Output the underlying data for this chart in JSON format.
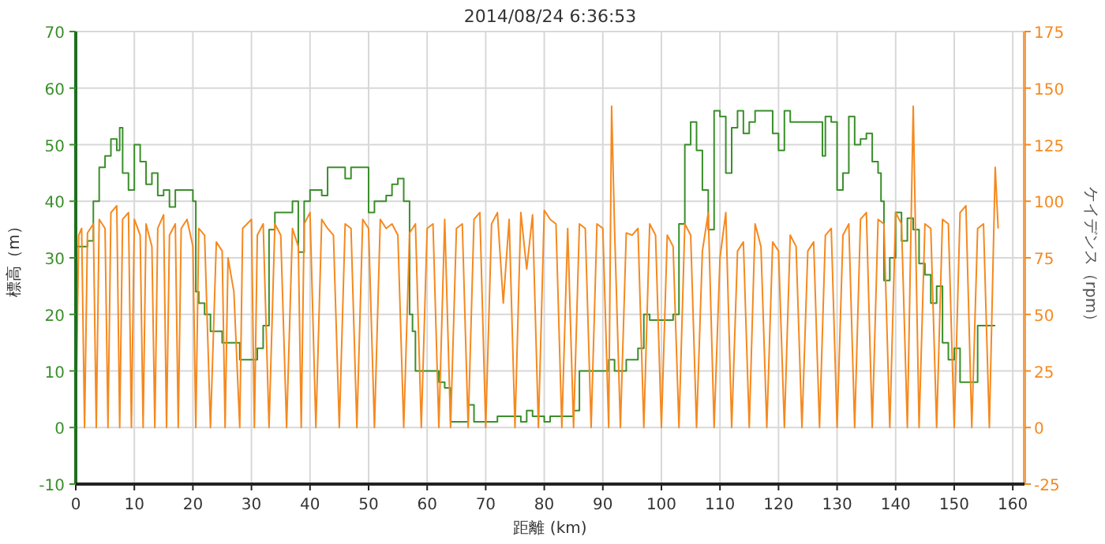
{
  "chart_data": {
    "type": "line",
    "title": "2014/08/24 6:36:53",
    "xlabel": "距離 (km)",
    "ylabel": "標高（m）",
    "y2label": "ケイデンス（rpm）",
    "xlim": [
      0,
      162
    ],
    "xticks": [
      0,
      10,
      20,
      30,
      40,
      50,
      60,
      70,
      80,
      90,
      100,
      110,
      120,
      130,
      140,
      150,
      160
    ],
    "ylim": [
      -10,
      70
    ],
    "yticks": [
      -10,
      0,
      10,
      20,
      30,
      40,
      50,
      60,
      70
    ],
    "y2lim": [
      -25,
      175
    ],
    "y2ticks": [
      -25,
      0,
      25,
      50,
      75,
      100,
      125,
      150,
      175
    ],
    "grid": true,
    "marker": "none",
    "line_style": "solid",
    "series": [
      {
        "type": "step",
        "color": "#3a8f2a",
        "x": [
          0,
          2,
          3,
          4,
          5,
          6,
          7,
          7.5,
          8,
          9,
          10,
          11,
          12,
          13,
          14,
          15,
          16,
          17,
          19,
          20,
          20.5,
          21,
          22,
          23,
          25,
          27,
          28,
          30,
          31,
          32,
          33,
          34,
          36,
          37,
          38,
          39,
          40,
          41,
          42,
          43,
          45,
          46,
          47,
          49,
          50,
          51,
          52,
          53,
          54,
          55,
          56,
          57,
          57.5,
          58,
          60,
          62,
          63,
          64,
          66,
          67,
          68,
          72,
          74,
          76,
          77,
          78,
          80,
          81,
          84,
          85,
          86,
          90,
          91,
          92,
          94,
          96,
          97,
          98,
          100,
          102,
          103,
          104,
          105,
          106,
          107,
          108,
          109,
          110,
          111,
          112,
          113,
          114,
          115,
          116,
          118,
          119,
          120,
          121,
          122,
          125,
          127,
          127.5,
          128,
          129,
          130,
          131,
          132,
          133,
          134,
          135,
          136,
          137,
          137.5,
          138,
          139,
          140,
          141,
          142,
          143,
          144,
          145,
          146,
          147,
          148,
          149,
          150,
          151,
          153,
          154,
          157
        ],
        "values": [
          32,
          33,
          40,
          46,
          48,
          51,
          49,
          53,
          45,
          42,
          50,
          47,
          43,
          45,
          41,
          42,
          39,
          42,
          42,
          40,
          24,
          22,
          20,
          17,
          15,
          15,
          12,
          12,
          14,
          18,
          35,
          38,
          38,
          40,
          31,
          40,
          42,
          42,
          41,
          46,
          46,
          44,
          46,
          46,
          38,
          40,
          40,
          41,
          43,
          44,
          40,
          20,
          17,
          10,
          10,
          8,
          7,
          1,
          1,
          4,
          1,
          2,
          2,
          1,
          3,
          2,
          1,
          2,
          2,
          3,
          10,
          10,
          12,
          10,
          12,
          14,
          20,
          19,
          19,
          20,
          36,
          50,
          54,
          49,
          42,
          35,
          56,
          55,
          45,
          53,
          56,
          52,
          54,
          56,
          56,
          52,
          49,
          56,
          54,
          54,
          54,
          48,
          55,
          54,
          42,
          45,
          55,
          50,
          51,
          52,
          47,
          45,
          40,
          26,
          30,
          38,
          33,
          37,
          35,
          29,
          27,
          22,
          25,
          15,
          12,
          14,
          8,
          8,
          18,
          18
        ]
      },
      {
        "axis": "y2",
        "color": "#f5891f",
        "x": [
          0,
          0.5,
          1,
          1.5,
          2,
          3,
          3.5,
          4,
          5,
          5.5,
          6,
          7,
          7.5,
          8,
          9,
          9.5,
          10,
          11,
          11.5,
          12,
          13,
          13.5,
          14,
          15,
          15.5,
          16,
          17,
          17.5,
          18,
          19,
          20,
          20.5,
          21,
          22,
          23,
          24,
          25,
          25.5,
          26,
          27,
          28,
          28.5,
          30,
          30.5,
          31,
          32,
          33,
          34,
          35,
          36,
          37,
          38,
          38.5,
          39,
          40,
          41,
          42,
          43,
          44,
          45,
          46,
          47,
          48,
          49,
          50,
          51,
          52,
          53,
          54,
          55,
          56,
          57,
          58,
          59,
          60,
          61,
          62,
          63,
          64,
          65,
          66,
          67,
          68,
          69,
          70,
          71,
          72,
          73,
          74,
          75,
          76,
          77,
          78,
          79,
          80,
          81,
          82,
          83,
          84,
          85,
          86,
          87,
          88,
          89,
          90,
          91,
          91.5,
          92,
          93,
          94,
          95,
          96,
          97,
          98,
          99,
          100,
          101,
          102,
          103,
          104,
          105,
          106,
          107,
          108,
          109,
          110,
          111,
          112,
          113,
          114,
          115,
          116,
          117,
          118,
          119,
          120,
          121,
          122,
          123,
          124,
          125,
          126,
          127,
          128,
          129,
          130,
          131,
          132,
          133,
          134,
          135,
          136,
          137,
          138,
          139,
          140,
          141,
          142,
          143,
          144,
          145,
          146,
          147,
          148,
          149,
          150,
          151,
          152,
          153,
          154,
          155,
          156,
          157,
          157.5
        ],
        "values": [
          0,
          85,
          88,
          0,
          86,
          90,
          0,
          92,
          88,
          0,
          95,
          98,
          0,
          92,
          95,
          0,
          92,
          85,
          0,
          90,
          80,
          0,
          88,
          94,
          0,
          85,
          90,
          0,
          88,
          92,
          80,
          0,
          88,
          85,
          0,
          82,
          78,
          0,
          75,
          60,
          0,
          88,
          92,
          0,
          85,
          90,
          0,
          90,
          85,
          0,
          88,
          80,
          0,
          90,
          95,
          0,
          92,
          88,
          85,
          0,
          90,
          88,
          0,
          92,
          88,
          0,
          92,
          88,
          90,
          85,
          0,
          86,
          90,
          0,
          88,
          90,
          0,
          92,
          0,
          88,
          90,
          0,
          92,
          95,
          0,
          90,
          95,
          55,
          92,
          0,
          95,
          70,
          94,
          0,
          96,
          92,
          90,
          0,
          88,
          0,
          90,
          88,
          0,
          90,
          88,
          0,
          142,
          88,
          0,
          86,
          85,
          88,
          0,
          90,
          85,
          0,
          85,
          80,
          0,
          90,
          85,
          0,
          78,
          95,
          0,
          75,
          95,
          0,
          78,
          82,
          0,
          90,
          80,
          0,
          82,
          78,
          0,
          85,
          80,
          0,
          78,
          82,
          0,
          85,
          88,
          0,
          85,
          90,
          0,
          92,
          95,
          0,
          92,
          90,
          0,
          95,
          90,
          0,
          142,
          0,
          90,
          88,
          0,
          92,
          90,
          0,
          95,
          98,
          0,
          88,
          90,
          0,
          115,
          88
        ]
      }
    ]
  }
}
